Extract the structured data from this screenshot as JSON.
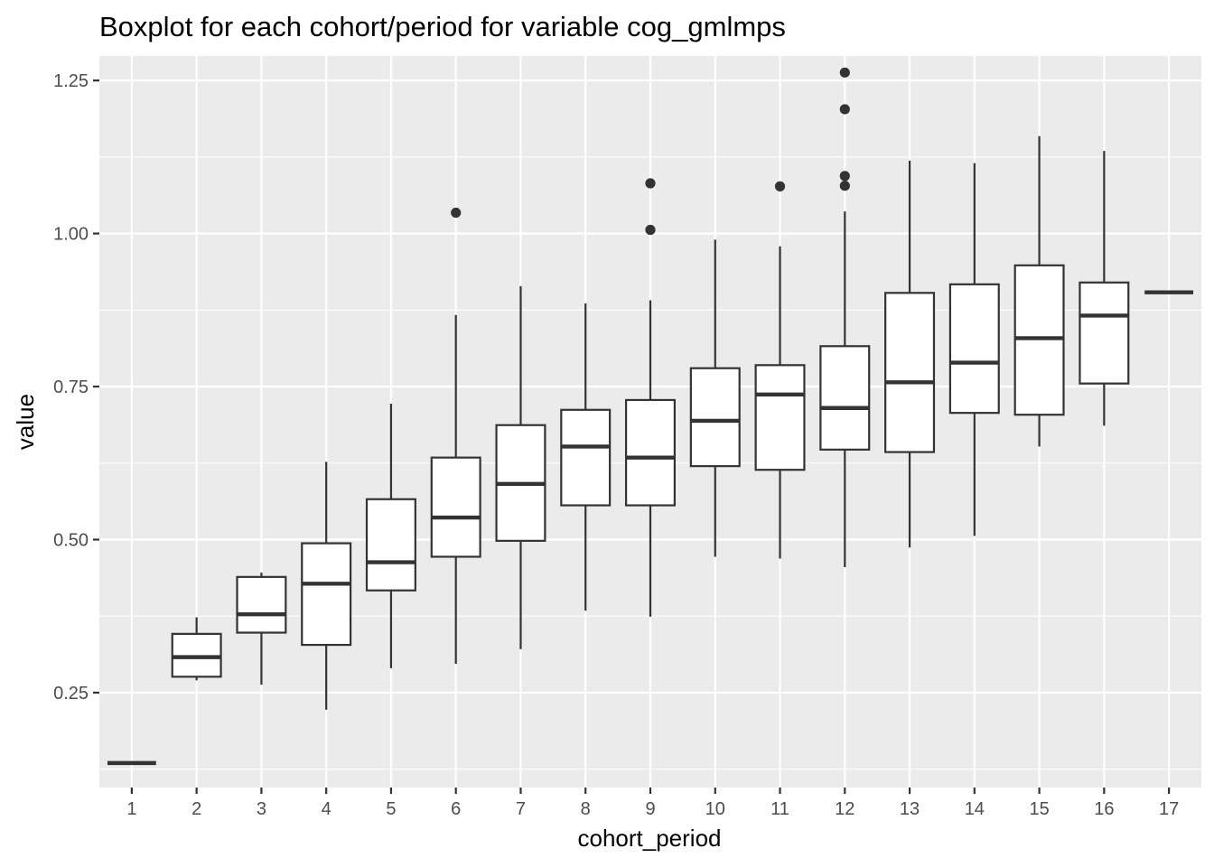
{
  "chart_data": {
    "type": "boxplot",
    "title": "Boxplot for each cohort/period for variable cog_gmlmps",
    "xlabel": "cohort_period",
    "ylabel": "value",
    "ylim": [
      0.095,
      1.29
    ],
    "y_ticks": [
      0.25,
      0.5,
      0.75,
      1.0,
      1.25
    ],
    "y_tick_labels": [
      "0.25",
      "0.50",
      "0.75",
      "1.00",
      "1.25"
    ],
    "grid": true,
    "categories": [
      "1",
      "2",
      "3",
      "4",
      "5",
      "6",
      "7",
      "8",
      "9",
      "10",
      "11",
      "12",
      "13",
      "14",
      "15",
      "16",
      "17"
    ],
    "boxes": [
      {
        "category": "1",
        "min": 0.135,
        "q1": 0.135,
        "median": 0.135,
        "q3": 0.135,
        "max": 0.135,
        "outliers": []
      },
      {
        "category": "2",
        "min": 0.27,
        "q1": 0.276,
        "median": 0.308,
        "q3": 0.346,
        "max": 0.373,
        "outliers": []
      },
      {
        "category": "3",
        "min": 0.263,
        "q1": 0.348,
        "median": 0.378,
        "q3": 0.439,
        "max": 0.446,
        "outliers": []
      },
      {
        "category": "4",
        "min": 0.222,
        "q1": 0.328,
        "median": 0.428,
        "q3": 0.494,
        "max": 0.627,
        "outliers": []
      },
      {
        "category": "5",
        "min": 0.29,
        "q1": 0.417,
        "median": 0.463,
        "q3": 0.566,
        "max": 0.722,
        "outliers": []
      },
      {
        "category": "6",
        "min": 0.297,
        "q1": 0.472,
        "median": 0.536,
        "q3": 0.634,
        "max": 0.867,
        "outliers": [
          1.034
        ]
      },
      {
        "category": "7",
        "min": 0.321,
        "q1": 0.498,
        "median": 0.591,
        "q3": 0.687,
        "max": 0.914,
        "outliers": []
      },
      {
        "category": "8",
        "min": 0.384,
        "q1": 0.556,
        "median": 0.652,
        "q3": 0.712,
        "max": 0.886,
        "outliers": []
      },
      {
        "category": "9",
        "min": 0.374,
        "q1": 0.556,
        "median": 0.634,
        "q3": 0.728,
        "max": 0.891,
        "outliers": [
          1.006,
          1.082
        ]
      },
      {
        "category": "10",
        "min": 0.472,
        "q1": 0.62,
        "median": 0.694,
        "q3": 0.78,
        "max": 0.99,
        "outliers": []
      },
      {
        "category": "11",
        "min": 0.469,
        "q1": 0.614,
        "median": 0.737,
        "q3": 0.785,
        "max": 0.979,
        "outliers": [
          1.077
        ]
      },
      {
        "category": "12",
        "min": 0.455,
        "q1": 0.647,
        "median": 0.715,
        "q3": 0.816,
        "max": 1.036,
        "outliers": [
          1.078,
          1.094,
          1.203,
          1.263
        ]
      },
      {
        "category": "13",
        "min": 0.487,
        "q1": 0.643,
        "median": 0.757,
        "q3": 0.903,
        "max": 1.119,
        "outliers": []
      },
      {
        "category": "14",
        "min": 0.506,
        "q1": 0.707,
        "median": 0.789,
        "q3": 0.917,
        "max": 1.115,
        "outliers": []
      },
      {
        "category": "15",
        "min": 0.652,
        "q1": 0.704,
        "median": 0.829,
        "q3": 0.948,
        "max": 1.159,
        "outliers": []
      },
      {
        "category": "16",
        "min": 0.686,
        "q1": 0.755,
        "median": 0.866,
        "q3": 0.92,
        "max": 1.135,
        "outliers": []
      },
      {
        "category": "17",
        "min": 0.904,
        "q1": 0.904,
        "median": 0.904,
        "q3": 0.904,
        "max": 0.904,
        "outliers": []
      }
    ],
    "colors": {
      "panel_background": "#ebebeb",
      "grid": "#ffffff",
      "box_fill": "#ffffff",
      "box_stroke": "#333333",
      "outlier": "#333333",
      "tick_text": "#4d4d4d",
      "tick_mark": "#333333"
    }
  }
}
